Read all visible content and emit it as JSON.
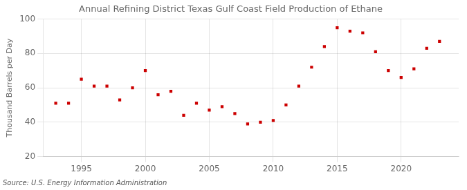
{
  "chart_data": {
    "type": "scatter",
    "title": "Annual Refining District Texas Gulf Coast Field Production of Ethane",
    "ylabel": "Thousand Barrels per Day",
    "source": "Source: U.S. Energy Information Administration",
    "x": [
      1993,
      1994,
      1995,
      1996,
      1997,
      1998,
      1999,
      2000,
      2001,
      2002,
      2003,
      2004,
      2005,
      2006,
      2007,
      2008,
      2009,
      2010,
      2011,
      2012,
      2013,
      2014,
      2015,
      2016,
      2017,
      2018,
      2019,
      2020,
      2021,
      2022,
      2023
    ],
    "values": [
      51,
      51,
      65,
      61,
      61,
      53,
      60,
      70,
      56,
      58,
      44,
      51,
      47,
      49,
      45,
      39,
      40,
      41,
      50,
      61,
      72,
      84,
      95,
      93,
      92,
      81,
      70,
      66,
      71,
      83,
      87
    ],
    "color": "#cc0000",
    "marker": "square",
    "xlim": [
      1992,
      2024.5
    ],
    "ylim": [
      20,
      100
    ],
    "xticks": [
      1995,
      2000,
      2005,
      2010,
      2015,
      2020
    ],
    "yticks": [
      20,
      40,
      60,
      80,
      100
    ],
    "grid": true
  }
}
